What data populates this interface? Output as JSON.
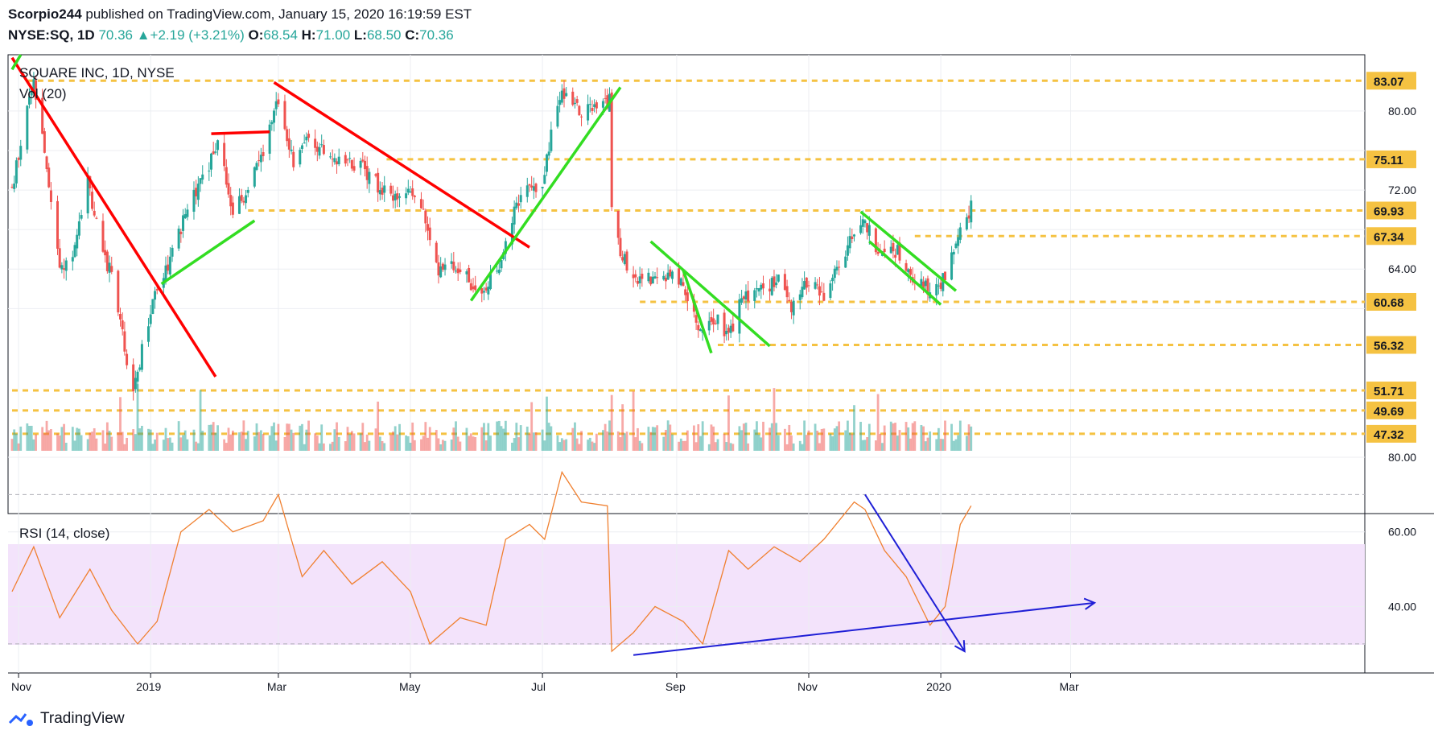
{
  "header": {
    "author": "Scorpio244",
    "published": "published on TradingView.com, January 15, 2020 16:19:59 EST",
    "symbol": "NYSE:SQ, 1D",
    "last": "70.36",
    "change": "+2.19 (+3.21%)",
    "o_label": "O:",
    "o_value": "68.54",
    "h_label": "H:",
    "h_value": "71.00",
    "l_label": "L:",
    "l_value": "68.50",
    "c_label": "C:",
    "c_value": "70.36"
  },
  "legend": {
    "title": "SQUARE INC, 1D, NYSE",
    "volume": "Vol (20)",
    "rsi": "RSI (14, close)"
  },
  "footer": {
    "brand": "TradingView"
  },
  "colors": {
    "up": "#26a69a",
    "down": "#ef5350",
    "trend_red": "#ff0000",
    "trend_green": "#33dd22",
    "level": "#f5c242",
    "rsi_line": "#f08030",
    "rsi_band": "#f3e3fb",
    "blue": "#1f1fd6"
  },
  "chart_data": [
    {
      "type": "candlestick",
      "title": "SQUARE INC, 1D, NYSE",
      "x_ticks": [
        "Nov",
        "2019",
        "Mar",
        "May",
        "Jul",
        "Sep",
        "Nov",
        "2020",
        "Mar"
      ],
      "y_ticks": [
        80.0,
        76.0,
        72.0,
        68.0,
        64.0,
        60.0
      ],
      "y_tick_labels": [
        "80.00",
        "72.00",
        "64.00"
      ],
      "ylim": [
        45.6,
        85.7
      ],
      "price_levels": [
        83.07,
        75.11,
        69.93,
        67.34,
        60.68,
        56.32,
        51.71,
        49.69,
        47.32
      ],
      "path_points": [
        {
          "x": "2018-10-29",
          "y": 72.0
        },
        {
          "x": "2018-11-05",
          "y": 80.0
        },
        {
          "x": "2018-11-08",
          "y": 83.0
        },
        {
          "x": "2018-11-13",
          "y": 76.0
        },
        {
          "x": "2018-11-16",
          "y": 70.0
        },
        {
          "x": "2018-11-20",
          "y": 64.0
        },
        {
          "x": "2018-11-26",
          "y": 66.0
        },
        {
          "x": "2018-12-03",
          "y": 73.0
        },
        {
          "x": "2018-12-10",
          "y": 65.0
        },
        {
          "x": "2018-12-14",
          "y": 64.0
        },
        {
          "x": "2018-12-18",
          "y": 59.0
        },
        {
          "x": "2018-12-24",
          "y": 51.0
        },
        {
          "x": "2018-12-28",
          "y": 56.0
        },
        {
          "x": "2019-01-03",
          "y": 62.0
        },
        {
          "x": "2019-01-10",
          "y": 65.0
        },
        {
          "x": "2019-01-18",
          "y": 70.0
        },
        {
          "x": "2019-01-25",
          "y": 73.0
        },
        {
          "x": "2019-02-01",
          "y": 77.0
        },
        {
          "x": "2019-02-08",
          "y": 70.0
        },
        {
          "x": "2019-02-15",
          "y": 72.0
        },
        {
          "x": "2019-02-22",
          "y": 76.0
        },
        {
          "x": "2019-02-28",
          "y": 81.0
        },
        {
          "x": "2019-03-08",
          "y": 75.0
        },
        {
          "x": "2019-03-15",
          "y": 77.0
        },
        {
          "x": "2019-03-22",
          "y": 76.0
        },
        {
          "x": "2019-04-01",
          "y": 75.0
        },
        {
          "x": "2019-04-10",
          "y": 74.0
        },
        {
          "x": "2019-04-22",
          "y": 71.0
        },
        {
          "x": "2019-05-03",
          "y": 72.0
        },
        {
          "x": "2019-05-08",
          "y": 69.0
        },
        {
          "x": "2019-05-14",
          "y": 64.0
        },
        {
          "x": "2019-05-24",
          "y": 64.0
        },
        {
          "x": "2019-06-03",
          "y": 61.0
        },
        {
          "x": "2019-06-10",
          "y": 64.0
        },
        {
          "x": "2019-06-17",
          "y": 69.0
        },
        {
          "x": "2019-06-24",
          "y": 73.0
        },
        {
          "x": "2019-07-01",
          "y": 72.0
        },
        {
          "x": "2019-07-05",
          "y": 78.0
        },
        {
          "x": "2019-07-10",
          "y": 82.0
        },
        {
          "x": "2019-07-18",
          "y": 80.0
        },
        {
          "x": "2019-07-25",
          "y": 80.0
        },
        {
          "x": "2019-08-01",
          "y": 81.0
        },
        {
          "x": "2019-08-02",
          "y": 70.0
        },
        {
          "x": "2019-08-07",
          "y": 65.0
        },
        {
          "x": "2019-08-15",
          "y": 63.0
        },
        {
          "x": "2019-08-26",
          "y": 63.0
        },
        {
          "x": "2019-09-03",
          "y": 63.0
        },
        {
          "x": "2019-09-09",
          "y": 59.0
        },
        {
          "x": "2019-09-13",
          "y": 58.0
        },
        {
          "x": "2019-09-20",
          "y": 59.0
        },
        {
          "x": "2019-09-25",
          "y": 57.0
        },
        {
          "x": "2019-10-01",
          "y": 61.0
        },
        {
          "x": "2019-10-10",
          "y": 62.0
        },
        {
          "x": "2019-10-18",
          "y": 63.0
        },
        {
          "x": "2019-10-24",
          "y": 60.0
        },
        {
          "x": "2019-11-01",
          "y": 63.0
        },
        {
          "x": "2019-11-08",
          "y": 61.0
        },
        {
          "x": "2019-11-14",
          "y": 64.0
        },
        {
          "x": "2019-11-21",
          "y": 67.0
        },
        {
          "x": "2019-11-27",
          "y": 69.0
        },
        {
          "x": "2019-12-04",
          "y": 65.0
        },
        {
          "x": "2019-12-12",
          "y": 66.0
        },
        {
          "x": "2019-12-19",
          "y": 63.0
        },
        {
          "x": "2019-12-26",
          "y": 62.0
        },
        {
          "x": "2020-01-03",
          "y": 63.0
        },
        {
          "x": "2020-01-07",
          "y": 66.0
        },
        {
          "x": "2020-01-10",
          "y": 68.0
        },
        {
          "x": "2020-01-15",
          "y": 70.36
        }
      ],
      "trend_lines": [
        {
          "color": "red",
          "from": {
            "x": "2018-10-29",
            "y": 85.4
          },
          "to": {
            "x": "2019-01-31",
            "y": 53.1
          }
        },
        {
          "color": "red",
          "from": {
            "x": "2019-01-29",
            "y": 77.7
          },
          "to": {
            "x": "2019-02-25",
            "y": 77.9
          }
        },
        {
          "color": "red",
          "from": {
            "x": "2019-02-27",
            "y": 82.9
          },
          "to": {
            "x": "2019-06-25",
            "y": 66.2
          }
        },
        {
          "color": "green",
          "from": {
            "x": "2018-10-29",
            "y": 84.2
          },
          "to": {
            "x": "2018-11-02",
            "y": 85.7
          }
        },
        {
          "color": "green",
          "from": {
            "x": "2019-01-06",
            "y": 62.5
          },
          "to": {
            "x": "2019-02-18",
            "y": 68.9
          }
        },
        {
          "color": "green",
          "from": {
            "x": "2019-05-29",
            "y": 60.8
          },
          "to": {
            "x": "2019-08-06",
            "y": 82.4
          }
        },
        {
          "color": "green",
          "from": {
            "x": "2019-08-20",
            "y": 66.8
          },
          "to": {
            "x": "2019-10-14",
            "y": 56.2
          }
        },
        {
          "color": "green",
          "from": {
            "x": "2019-09-04",
            "y": 63.9
          },
          "to": {
            "x": "2019-09-17",
            "y": 55.5
          }
        },
        {
          "color": "green",
          "from": {
            "x": "2019-11-25",
            "y": 69.8
          },
          "to": {
            "x": "2020-01-08",
            "y": 61.8
          }
        },
        {
          "color": "green",
          "from": {
            "x": "2019-11-29",
            "y": 66.8
          },
          "to": {
            "x": "2020-01-01",
            "y": 60.4
          }
        }
      ],
      "grid": true
    },
    {
      "type": "bar",
      "title": "Vol (20)",
      "note": "volume histogram, no printed scale"
    },
    {
      "type": "line",
      "title": "RSI (14, close)",
      "y_ticks": [
        80.0,
        60.0,
        40.0
      ],
      "y_tick_labels": [
        "80.00",
        "60.00",
        "40.00"
      ],
      "ylim": [
        23.5,
        80.0
      ],
      "band": [
        30,
        70
      ],
      "x": [
        "2018-10-29",
        "2018-11-08",
        "2018-11-20",
        "2018-12-04",
        "2018-12-14",
        "2018-12-26",
        "2019-01-04",
        "2019-01-15",
        "2019-01-28",
        "2019-02-08",
        "2019-02-22",
        "2019-03-01",
        "2019-03-12",
        "2019-03-22",
        "2019-04-04",
        "2019-04-18",
        "2019-05-01",
        "2019-05-10",
        "2019-05-24",
        "2019-06-05",
        "2019-06-14",
        "2019-06-25",
        "2019-07-02",
        "2019-07-10",
        "2019-07-19",
        "2019-07-31",
        "2019-08-02",
        "2019-08-12",
        "2019-08-22",
        "2019-09-04",
        "2019-09-13",
        "2019-09-25",
        "2019-10-04",
        "2019-10-16",
        "2019-10-28",
        "2019-11-08",
        "2019-11-22",
        "2019-11-27",
        "2019-12-06",
        "2019-12-16",
        "2019-12-27",
        "2020-01-03",
        "2020-01-10",
        "2020-01-15"
      ],
      "values": [
        44,
        56,
        37,
        50,
        39,
        30,
        36,
        60,
        66,
        60,
        63,
        70,
        48,
        55,
        46,
        52,
        44,
        30,
        37,
        35,
        58,
        62,
        58,
        76,
        68,
        67,
        28,
        33,
        40,
        36,
        30,
        55,
        50,
        56,
        52,
        58,
        68,
        66,
        55,
        48,
        35,
        40,
        62,
        67
      ],
      "annotations": [
        {
          "color": "blue",
          "from": {
            "x": "2019-11-27",
            "y": 70
          },
          "to": {
            "x": "2020-01-12",
            "y": 28
          },
          "arrow": true
        },
        {
          "color": "blue",
          "from": {
            "x": "2019-08-12",
            "y": 27
          },
          "to": {
            "x": "2020-03-12",
            "y": 41
          },
          "arrow": true
        }
      ],
      "grid": true
    }
  ]
}
